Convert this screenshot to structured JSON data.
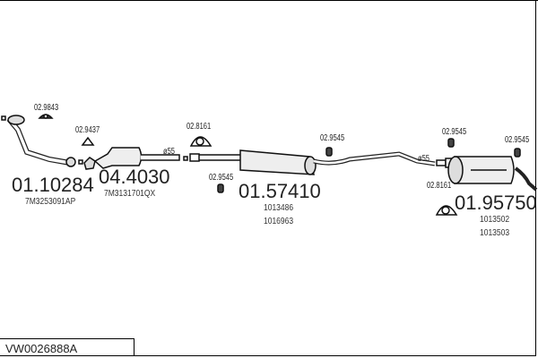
{
  "title": "VW0026888A",
  "parts": [
    {
      "number": "01.10284",
      "refs": [
        "7M3253091AP"
      ]
    },
    {
      "number": "04.4030",
      "refs": [
        "7M3131701QX"
      ]
    },
    {
      "number": "01.57410",
      "refs": [
        "1013486",
        "1016963"
      ]
    },
    {
      "number": "01.95750",
      "refs": [
        "1013502",
        "1013503"
      ]
    }
  ],
  "fittings": [
    "02.9843",
    "02.9437",
    "02.8161",
    "02.9545",
    "02.9545",
    "02.9545",
    "02.9545",
    "02.8161"
  ],
  "diameters": [
    "ø55",
    "ø55"
  ]
}
